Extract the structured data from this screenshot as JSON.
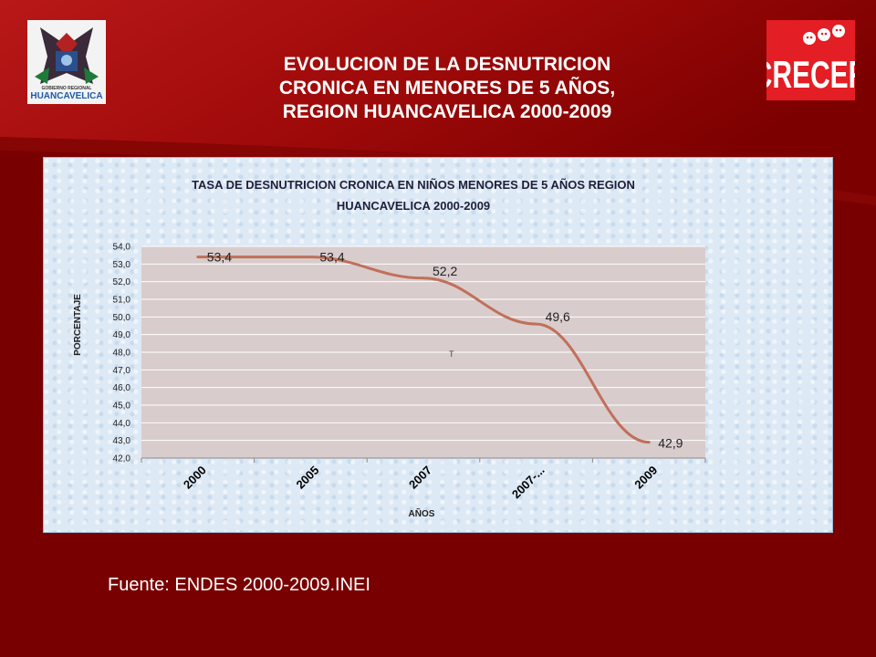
{
  "slide": {
    "title_lines": [
      "EVOLUCION DE LA DESNUTRICION",
      "CRONICA EN MENORES DE 5 AÑOS,",
      "REGION HUANCAVELICA 2000-2009"
    ],
    "source": "Fuente: ENDES 2000-2009.INEI",
    "colors": {
      "background": "#7a0000",
      "accent": "#c0392b",
      "text": "#ffffff"
    }
  },
  "logos": {
    "left": {
      "icon": "gobierno-regional-huancavelica-logo",
      "text_top": "GOBIERNO REGIONAL",
      "text_main": "HUANCAVELICA"
    },
    "right": {
      "icon": "crecer-logo",
      "text": "CRECER"
    }
  },
  "chart_data": {
    "type": "line",
    "title_lines": [
      "TASA DE DESNUTRICION CRONICA EN NIÑOS MENORES DE 5 AÑOS REGION",
      "HUANCAVELICA 2000-2009"
    ],
    "xlabel": "AÑOS",
    "ylabel": "PORCENTAJE",
    "categories": [
      "2000",
      "2005",
      "2007",
      "2007-...",
      "2009"
    ],
    "series": [
      {
        "values": [
          53.4,
          53.4,
          52.2,
          49.6,
          42.9
        ],
        "color": "#c0705a"
      }
    ],
    "data_labels": [
      "53,4",
      "53,4",
      "52,2",
      "49,6",
      "42,9"
    ],
    "y_ticks": [
      "42,0",
      "43,0",
      "44,0",
      "45,0",
      "46,0",
      "47,0",
      "48,0",
      "49,0",
      "50,0",
      "51,0",
      "52,0",
      "53,0",
      "54,0"
    ],
    "ylim": [
      42,
      54
    ],
    "grid": true,
    "annotation": "T",
    "plot_background": "#d9cccc"
  }
}
